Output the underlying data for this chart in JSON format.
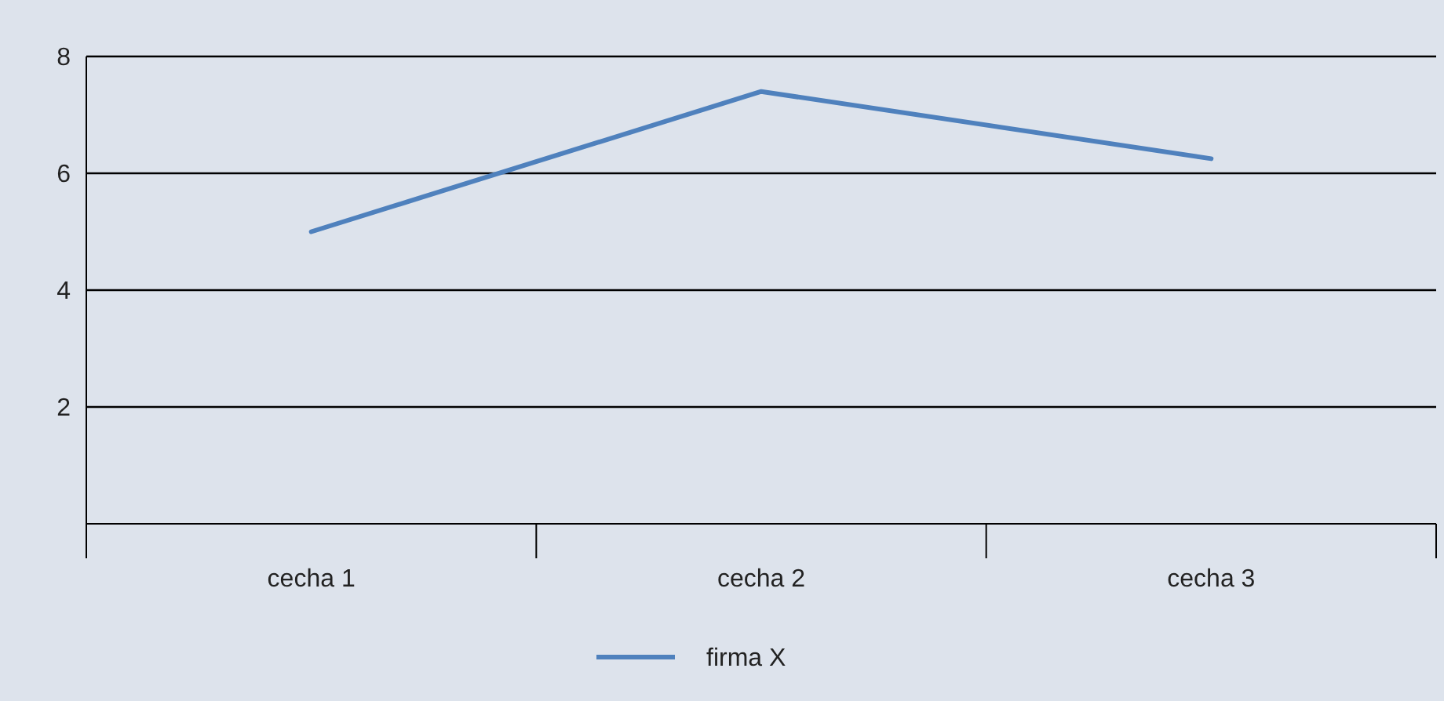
{
  "chart_data": {
    "type": "line",
    "categories": [
      "cecha 1",
      "cecha 2",
      "cecha 3"
    ],
    "series": [
      {
        "name": "firma X",
        "color": "#4f81bd",
        "values": [
          5.0,
          7.4,
          6.25
        ]
      }
    ],
    "ylim": [
      0,
      8
    ],
    "yticks": [
      {
        "value": 0,
        "label": null
      },
      2,
      4,
      6,
      8
    ],
    "grid": "y",
    "legend": "bottom",
    "marker": "none",
    "line_style": "solid"
  }
}
